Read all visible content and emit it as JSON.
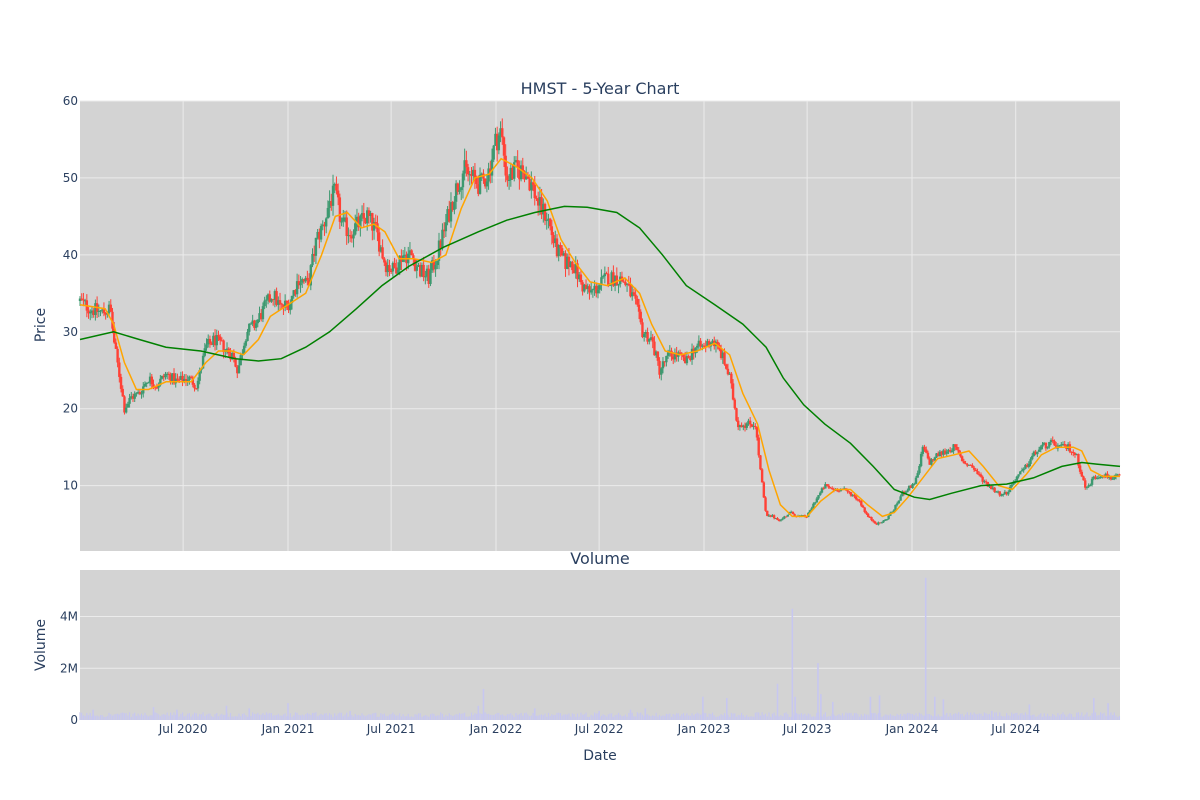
{
  "colors": {
    "plot_bg": "#d3d3d3",
    "grid": "#ebebeb",
    "increasing": "#3d9970",
    "decreasing": "#ff4136",
    "ma_short": "#ffa500",
    "ma_long": "#008000",
    "volume_bar": "#c7c7f0",
    "text": "#2a3f5f"
  },
  "chart_data": [
    {
      "type": "candlestick",
      "title": "HMST - 5-Year Chart",
      "xlabel": "",
      "ylabel": "Price",
      "ylim": [
        1.5,
        60
      ],
      "xlim": [
        "2020-01-02",
        "2024-12-31"
      ],
      "grid": true,
      "x_ticks": [
        "2020-07-01",
        "2021-01-01",
        "2021-07-01",
        "2022-01-01",
        "2022-07-01",
        "2023-01-01",
        "2023-07-01",
        "2024-01-01",
        "2024-07-01"
      ],
      "y_ticks": [
        10,
        20,
        30,
        40,
        50,
        60
      ],
      "price_close": [
        [
          "2020-01-02",
          34
        ],
        [
          "2020-01-20",
          33
        ],
        [
          "2020-02-10",
          32.5
        ],
        [
          "2020-02-24",
          33
        ],
        [
          "2020-03-03",
          28
        ],
        [
          "2020-03-12",
          24
        ],
        [
          "2020-03-20",
          20
        ],
        [
          "2020-04-01",
          21.5
        ],
        [
          "2020-04-15",
          22
        ],
        [
          "2020-05-01",
          24
        ],
        [
          "2020-05-15",
          23
        ],
        [
          "2020-06-01",
          24.5
        ],
        [
          "2020-06-20",
          23.5
        ],
        [
          "2020-07-10",
          24
        ],
        [
          "2020-07-25",
          23
        ],
        [
          "2020-08-10",
          28
        ],
        [
          "2020-08-25",
          29
        ],
        [
          "2020-09-10",
          28
        ],
        [
          "2020-09-25",
          27
        ],
        [
          "2020-10-05",
          25
        ],
        [
          "2020-10-20",
          30
        ],
        [
          "2020-11-05",
          31
        ],
        [
          "2020-11-20",
          33
        ],
        [
          "2020-12-05",
          35
        ],
        [
          "2020-12-20",
          33
        ],
        [
          "2021-01-05",
          34
        ],
        [
          "2021-01-20",
          37
        ],
        [
          "2021-02-05",
          36
        ],
        [
          "2021-02-20",
          42
        ],
        [
          "2021-03-05",
          44
        ],
        [
          "2021-03-15",
          47
        ],
        [
          "2021-03-25",
          48
        ],
        [
          "2021-04-05",
          44
        ],
        [
          "2021-04-20",
          43
        ],
        [
          "2021-05-05",
          44
        ],
        [
          "2021-05-20",
          45
        ],
        [
          "2021-06-05",
          43
        ],
        [
          "2021-06-20",
          39
        ],
        [
          "2021-07-05",
          38
        ],
        [
          "2021-07-20",
          40
        ],
        [
          "2021-08-05",
          40
        ],
        [
          "2021-08-20",
          38
        ],
        [
          "2021-09-05",
          37
        ],
        [
          "2021-09-20",
          40
        ],
        [
          "2021-10-05",
          44
        ],
        [
          "2021-10-20",
          48
        ],
        [
          "2021-11-05",
          51
        ],
        [
          "2021-11-20",
          50
        ],
        [
          "2021-12-05",
          49
        ],
        [
          "2021-12-20",
          51
        ],
        [
          "2022-01-01",
          55
        ],
        [
          "2022-01-10",
          56
        ],
        [
          "2022-01-20",
          50
        ],
        [
          "2022-02-05",
          51
        ],
        [
          "2022-02-20",
          51
        ],
        [
          "2022-03-05",
          49
        ],
        [
          "2022-03-20",
          46
        ],
        [
          "2022-04-01",
          45
        ],
        [
          "2022-04-15",
          41
        ],
        [
          "2022-05-01",
          39
        ],
        [
          "2022-05-15",
          39
        ],
        [
          "2022-06-01",
          36
        ],
        [
          "2022-06-15",
          35
        ],
        [
          "2022-07-01",
          36
        ],
        [
          "2022-07-15",
          37
        ],
        [
          "2022-08-01",
          37
        ],
        [
          "2022-08-15",
          36.5
        ],
        [
          "2022-09-01",
          34
        ],
        [
          "2022-09-15",
          30
        ],
        [
          "2022-10-01",
          29
        ],
        [
          "2022-10-15",
          25
        ],
        [
          "2022-11-01",
          27
        ],
        [
          "2022-11-15",
          27
        ],
        [
          "2022-12-01",
          26
        ],
        [
          "2022-12-15",
          28
        ],
        [
          "2023-01-01",
          28
        ],
        [
          "2023-01-15",
          29
        ],
        [
          "2023-02-01",
          27
        ],
        [
          "2023-02-15",
          24
        ],
        [
          "2023-03-01",
          18
        ],
        [
          "2023-03-15",
          18
        ],
        [
          "2023-04-01",
          18
        ],
        [
          "2023-04-10",
          12
        ],
        [
          "2023-04-20",
          6
        ],
        [
          "2023-05-01",
          6
        ],
        [
          "2023-05-15",
          5.5
        ],
        [
          "2023-06-01",
          6.5
        ],
        [
          "2023-06-15",
          6
        ],
        [
          "2023-07-01",
          6
        ],
        [
          "2023-07-15",
          8
        ],
        [
          "2023-08-01",
          10
        ],
        [
          "2023-08-15",
          9.5
        ],
        [
          "2023-09-01",
          9.5
        ],
        [
          "2023-09-15",
          9
        ],
        [
          "2023-10-01",
          8
        ],
        [
          "2023-10-15",
          6
        ],
        [
          "2023-11-01",
          5
        ],
        [
          "2023-11-15",
          5.5
        ],
        [
          "2023-12-01",
          7
        ],
        [
          "2023-12-15",
          9
        ],
        [
          "2024-01-01",
          10
        ],
        [
          "2024-01-10",
          11
        ],
        [
          "2024-01-20",
          15
        ],
        [
          "2024-02-01",
          13
        ],
        [
          "2024-02-15",
          14
        ],
        [
          "2024-03-01",
          14.5
        ],
        [
          "2024-03-15",
          15
        ],
        [
          "2024-04-01",
          13
        ],
        [
          "2024-04-15",
          12.5
        ],
        [
          "2024-05-01",
          11
        ],
        [
          "2024-05-15",
          10
        ],
        [
          "2024-06-01",
          9
        ],
        [
          "2024-06-15",
          9
        ],
        [
          "2024-07-01",
          11
        ],
        [
          "2024-07-15",
          12
        ],
        [
          "2024-08-01",
          14
        ],
        [
          "2024-08-15",
          15
        ],
        [
          "2024-09-01",
          15.5
        ],
        [
          "2024-09-15",
          15
        ],
        [
          "2024-10-01",
          15
        ],
        [
          "2024-10-15",
          14
        ],
        [
          "2024-11-01",
          9.5
        ],
        [
          "2024-11-15",
          11
        ],
        [
          "2024-12-01",
          11.5
        ],
        [
          "2024-12-15",
          11
        ],
        [
          "2024-12-31",
          11.2
        ]
      ],
      "ma_short": [
        [
          "2020-01-02",
          33.5
        ],
        [
          "2020-02-15",
          33
        ],
        [
          "2020-03-01",
          31
        ],
        [
          "2020-03-20",
          26
        ],
        [
          "2020-04-10",
          22.5
        ],
        [
          "2020-05-01",
          22.5
        ],
        [
          "2020-06-01",
          23.5
        ],
        [
          "2020-07-15",
          23.5
        ],
        [
          "2020-08-10",
          26
        ],
        [
          "2020-09-01",
          27.5
        ],
        [
          "2020-09-25",
          27.5
        ],
        [
          "2020-10-15",
          27
        ],
        [
          "2020-11-10",
          29
        ],
        [
          "2020-12-01",
          32
        ],
        [
          "2021-01-01",
          33.5
        ],
        [
          "2021-02-01",
          35
        ],
        [
          "2021-03-01",
          40
        ],
        [
          "2021-03-25",
          45
        ],
        [
          "2021-04-15",
          45.5
        ],
        [
          "2021-05-10",
          43.5
        ],
        [
          "2021-06-01",
          44
        ],
        [
          "2021-06-20",
          43
        ],
        [
          "2021-07-15",
          39.5
        ],
        [
          "2021-08-10",
          39.5
        ],
        [
          "2021-09-10",
          39
        ],
        [
          "2021-10-05",
          40
        ],
        [
          "2021-11-01",
          46
        ],
        [
          "2021-11-25",
          50
        ],
        [
          "2021-12-20",
          50.5
        ],
        [
          "2022-01-10",
          52.5
        ],
        [
          "2022-02-05",
          51.5
        ],
        [
          "2022-03-05",
          50
        ],
        [
          "2022-04-01",
          47
        ],
        [
          "2022-04-25",
          42
        ],
        [
          "2022-05-20",
          39
        ],
        [
          "2022-06-15",
          36.5
        ],
        [
          "2022-07-15",
          36
        ],
        [
          "2022-08-15",
          37
        ],
        [
          "2022-09-10",
          35
        ],
        [
          "2022-10-01",
          31
        ],
        [
          "2022-10-25",
          27.5
        ],
        [
          "2022-11-20",
          27
        ],
        [
          "2022-12-20",
          27.5
        ],
        [
          "2023-01-20",
          28.5
        ],
        [
          "2023-02-15",
          27
        ],
        [
          "2023-03-10",
          22
        ],
        [
          "2023-04-05",
          18
        ],
        [
          "2023-04-25",
          12
        ],
        [
          "2023-05-15",
          7.5
        ],
        [
          "2023-06-05",
          6
        ],
        [
          "2023-07-01",
          6
        ],
        [
          "2023-07-25",
          8
        ],
        [
          "2023-08-20",
          9.5
        ],
        [
          "2023-09-15",
          9.5
        ],
        [
          "2023-10-15",
          7.5
        ],
        [
          "2023-11-10",
          6
        ],
        [
          "2023-12-01",
          6.5
        ],
        [
          "2023-12-25",
          8.5
        ],
        [
          "2024-01-20",
          11
        ],
        [
          "2024-02-15",
          13.5
        ],
        [
          "2024-03-15",
          14
        ],
        [
          "2024-04-10",
          14.5
        ],
        [
          "2024-05-05",
          12.5
        ],
        [
          "2024-06-01",
          10
        ],
        [
          "2024-06-25",
          9.5
        ],
        [
          "2024-07-20",
          11.5
        ],
        [
          "2024-08-15",
          14
        ],
        [
          "2024-09-10",
          15
        ],
        [
          "2024-10-10",
          15
        ],
        [
          "2024-10-25",
          14.5
        ],
        [
          "2024-11-10",
          12
        ],
        [
          "2024-12-01",
          11.2
        ],
        [
          "2024-12-31",
          11.2
        ]
      ],
      "ma_long": [
        [
          "2020-01-02",
          29
        ],
        [
          "2020-03-01",
          30
        ],
        [
          "2020-04-15",
          29
        ],
        [
          "2020-06-01",
          28
        ],
        [
          "2020-08-01",
          27.5
        ],
        [
          "2020-10-01",
          26.5
        ],
        [
          "2020-11-10",
          26.2
        ],
        [
          "2020-12-20",
          26.5
        ],
        [
          "2021-02-01",
          28
        ],
        [
          "2021-03-15",
          30
        ],
        [
          "2021-05-01",
          33
        ],
        [
          "2021-06-15",
          36
        ],
        [
          "2021-08-01",
          38.5
        ],
        [
          "2021-10-01",
          41
        ],
        [
          "2021-12-01",
          43
        ],
        [
          "2022-01-20",
          44.5
        ],
        [
          "2022-03-10",
          45.5
        ],
        [
          "2022-05-01",
          46.3
        ],
        [
          "2022-06-10",
          46.2
        ],
        [
          "2022-08-01",
          45.5
        ],
        [
          "2022-09-10",
          43.5
        ],
        [
          "2022-10-20",
          40
        ],
        [
          "2022-12-01",
          36
        ],
        [
          "2023-01-20",
          33.5
        ],
        [
          "2023-03-10",
          31
        ],
        [
          "2023-04-20",
          28
        ],
        [
          "2023-05-20",
          24
        ],
        [
          "2023-06-25",
          20.5
        ],
        [
          "2023-08-01",
          18
        ],
        [
          "2023-09-15",
          15.5
        ],
        [
          "2023-10-25",
          12.5
        ],
        [
          "2023-12-01",
          9.5
        ],
        [
          "2024-01-05",
          8.5
        ],
        [
          "2024-02-01",
          8.2
        ],
        [
          "2024-03-10",
          9
        ],
        [
          "2024-05-01",
          10
        ],
        [
          "2024-06-15",
          10.2
        ],
        [
          "2024-08-01",
          11
        ],
        [
          "2024-09-20",
          12.5
        ],
        [
          "2024-10-25",
          13
        ],
        [
          "2024-11-20",
          12.8
        ],
        [
          "2024-12-31",
          12.5
        ]
      ]
    },
    {
      "type": "bar",
      "title": "Volume",
      "xlabel": "Date",
      "ylabel": "Volume",
      "ylim": [
        0,
        5800000
      ],
      "grid": true,
      "y_ticks": [
        0,
        2000000,
        4000000
      ],
      "y_tick_labels": [
        "0",
        "2M",
        "4M"
      ],
      "x_tick_labels": [
        "Jul 2020",
        "Jan 2021",
        "Jul 2021",
        "Jan 2022",
        "Jul 2022",
        "Jan 2023",
        "Jul 2023",
        "Jan 2024",
        "Jul 2024"
      ],
      "spikes": [
        [
          "2020-01-25",
          400000
        ],
        [
          "2020-05-10",
          500000
        ],
        [
          "2020-06-20",
          400000
        ],
        [
          "2020-09-15",
          550000
        ],
        [
          "2020-10-25",
          450000
        ],
        [
          "2021-01-01",
          650000
        ],
        [
          "2021-04-20",
          350000
        ],
        [
          "2021-12-01",
          550000
        ],
        [
          "2021-12-10",
          1200000
        ],
        [
          "2022-03-10",
          450000
        ],
        [
          "2022-07-01",
          350000
        ],
        [
          "2022-08-25",
          400000
        ],
        [
          "2022-09-20",
          450000
        ],
        [
          "2022-12-30",
          900000
        ],
        [
          "2023-02-10",
          850000
        ],
        [
          "2023-05-10",
          1400000
        ],
        [
          "2023-06-10",
          900000
        ],
        [
          "2023-06-05",
          4300000
        ],
        [
          "2023-07-20",
          2200000
        ],
        [
          "2023-07-25",
          1000000
        ],
        [
          "2023-08-15",
          700000
        ],
        [
          "2023-10-20",
          900000
        ],
        [
          "2023-11-05",
          950000
        ],
        [
          "2024-01-25",
          5500000
        ],
        [
          "2024-02-10",
          900000
        ],
        [
          "2024-02-25",
          800000
        ],
        [
          "2024-05-20",
          350000
        ],
        [
          "2024-07-25",
          600000
        ],
        [
          "2024-11-15",
          850000
        ],
        [
          "2024-12-10",
          650000
        ]
      ]
    }
  ]
}
